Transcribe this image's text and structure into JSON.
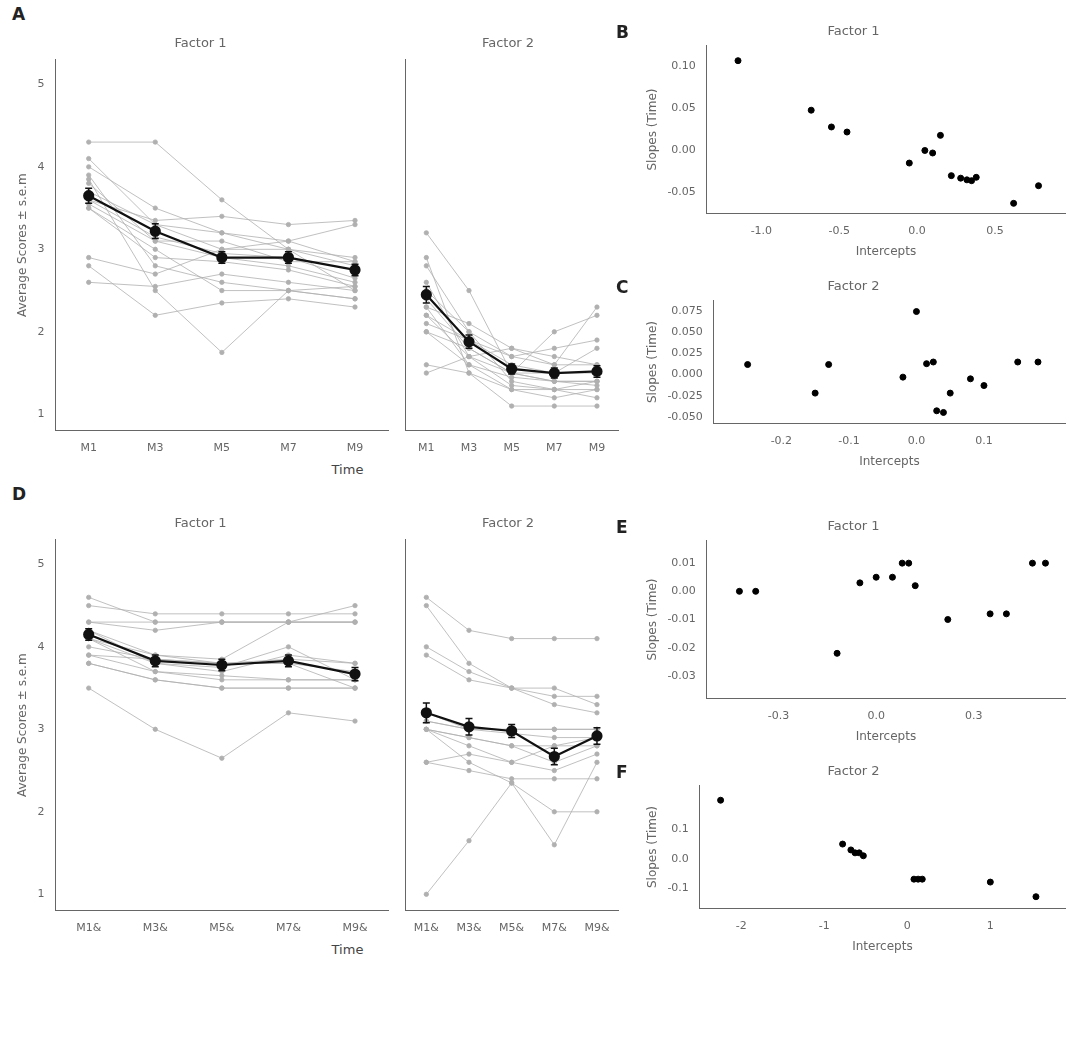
{
  "chart_data": [
    {
      "type": "line",
      "title": "Factor 1",
      "xlabel": "Time",
      "ylabel": "Average Scores ± s.e.m",
      "annotations": [
        "A"
      ],
      "categories": [
        "M1",
        "M3",
        "M5",
        "M7",
        "M9"
      ],
      "ylim": [
        0.8,
        5.3
      ],
      "yticks": [
        1,
        2,
        3,
        4,
        5
      ],
      "grid": false,
      "series": [
        {
          "color": "#b0b0b0",
          "marker": "circle",
          "values": [
            3.55,
            3.1,
            2.9,
            2.8,
            2.6
          ]
        },
        {
          "color": "#b0b0b0",
          "marker": "circle",
          "values": [
            3.5,
            2.9,
            2.85,
            2.75,
            2.55
          ]
        },
        {
          "color": "#b0b0b0",
          "marker": "circle",
          "values": [
            3.6,
            3.15,
            2.95,
            2.9,
            2.65
          ]
        },
        {
          "color": "#b0b0b0",
          "marker": "circle",
          "values": [
            3.7,
            3.3,
            3.0,
            3.0,
            2.8
          ]
        },
        {
          "color": "#b0b0b0",
          "marker": "circle",
          "values": [
            3.8,
            3.1,
            3.1,
            2.85,
            2.85
          ]
        },
        {
          "color": "#b0b0b0",
          "marker": "circle",
          "values": [
            2.9,
            2.7,
            3.0,
            3.1,
            3.3
          ]
        },
        {
          "color": "#b0b0b0",
          "marker": "circle",
          "values": [
            4.0,
            3.5,
            3.2,
            3.0,
            2.9
          ]
        },
        {
          "color": "#b0b0b0",
          "marker": "circle",
          "values": [
            4.1,
            3.3,
            3.2,
            3.1,
            2.85
          ]
        },
        {
          "color": "#b0b0b0",
          "marker": "circle",
          "values": [
            3.6,
            3.35,
            3.4,
            3.3,
            3.35
          ]
        },
        {
          "color": "#b0b0b0",
          "marker": "circle",
          "values": [
            4.3,
            4.3,
            3.6,
            3.0,
            2.5
          ]
        },
        {
          "color": "#b0b0b0",
          "marker": "circle",
          "values": [
            3.5,
            3.0,
            2.5,
            2.5,
            2.4
          ]
        },
        {
          "color": "#b0b0b0",
          "marker": "circle",
          "values": [
            2.8,
            2.2,
            2.35,
            2.4,
            2.3
          ]
        },
        {
          "color": "#b0b0b0",
          "marker": "circle",
          "values": [
            2.6,
            2.55,
            2.7,
            2.6,
            2.5
          ]
        },
        {
          "color": "#b0b0b0",
          "marker": "circle",
          "values": [
            3.9,
            2.8,
            2.6,
            2.5,
            2.4
          ]
        },
        {
          "color": "#b0b0b0",
          "marker": "circle",
          "values": [
            3.85,
            2.5,
            1.75,
            2.5,
            2.55
          ]
        },
        {
          "color": "#111111",
          "marker": "circle",
          "values": [
            3.65,
            3.22,
            2.9,
            2.9,
            2.75
          ],
          "errors": [
            0.09,
            0.09,
            0.07,
            0.07,
            0.07
          ]
        }
      ]
    },
    {
      "type": "line",
      "title": "Factor 2",
      "tick_labels": "x",
      "categories": [
        "M1",
        "M3",
        "M5",
        "M7",
        "M9"
      ],
      "ylim": [
        0.8,
        5.3
      ],
      "yticks": [
        1,
        2,
        3,
        4,
        5
      ],
      "grid": false,
      "series": [
        {
          "color": "#b0b0b0",
          "marker": "circle",
          "values": [
            3.2,
            2.5,
            1.5,
            2.0,
            2.2
          ]
        },
        {
          "color": "#b0b0b0",
          "marker": "circle",
          "values": [
            2.8,
            2.0,
            1.4,
            1.3,
            1.4
          ]
        },
        {
          "color": "#b0b0b0",
          "marker": "circle",
          "values": [
            2.2,
            1.7,
            1.35,
            1.3,
            1.3
          ]
        },
        {
          "color": "#b0b0b0",
          "marker": "circle",
          "values": [
            2.0,
            1.8,
            1.5,
            1.5,
            1.5
          ]
        },
        {
          "color": "#b0b0b0",
          "marker": "circle",
          "values": [
            2.5,
            2.0,
            1.7,
            1.6,
            1.6
          ]
        },
        {
          "color": "#b0b0b0",
          "marker": "circle",
          "values": [
            2.6,
            1.7,
            1.5,
            1.4,
            1.4
          ]
        },
        {
          "color": "#b0b0b0",
          "marker": "circle",
          "values": [
            2.9,
            1.5,
            1.1,
            1.1,
            1.1
          ]
        },
        {
          "color": "#b0b0b0",
          "marker": "circle",
          "values": [
            1.6,
            1.5,
            1.3,
            1.3,
            1.2
          ]
        },
        {
          "color": "#b0b0b0",
          "marker": "circle",
          "values": [
            2.4,
            1.8,
            1.5,
            1.4,
            1.4
          ]
        },
        {
          "color": "#b0b0b0",
          "marker": "circle",
          "values": [
            2.3,
            1.6,
            1.3,
            1.2,
            1.3
          ]
        },
        {
          "color": "#b0b0b0",
          "marker": "circle",
          "values": [
            2.2,
            1.9,
            1.7,
            1.8,
            1.9
          ]
        },
        {
          "color": "#b0b0b0",
          "marker": "circle",
          "values": [
            1.5,
            1.7,
            1.8,
            1.6,
            2.3
          ]
        },
        {
          "color": "#b0b0b0",
          "marker": "circle",
          "values": [
            2.1,
            1.9,
            1.6,
            1.5,
            1.8
          ]
        },
        {
          "color": "#b0b0b0",
          "marker": "circle",
          "values": [
            2.3,
            2.1,
            1.8,
            1.7,
            1.6
          ]
        },
        {
          "color": "#b0b0b0",
          "marker": "circle",
          "values": [
            2.0,
            1.6,
            1.45,
            1.4,
            1.35
          ]
        },
        {
          "color": "#111111",
          "marker": "circle",
          "values": [
            2.45,
            1.88,
            1.55,
            1.5,
            1.52
          ],
          "errors": [
            0.1,
            0.08,
            0.06,
            0.06,
            0.07
          ]
        }
      ]
    },
    {
      "type": "line",
      "title": "Factor 1",
      "xlabel": "Time",
      "ylabel": "Average Scores ± s.e.m",
      "annotations": [
        "D"
      ],
      "categories": [
        "M1&",
        "M3&",
        "M5&",
        "M7&",
        "M9&"
      ],
      "ylim": [
        0.8,
        5.3
      ],
      "yticks": [
        1,
        2,
        3,
        4,
        5
      ],
      "grid": false,
      "series": [
        {
          "color": "#b0b0b0",
          "marker": "circle",
          "values": [
            4.1,
            3.9,
            3.8,
            3.8,
            3.7
          ]
        },
        {
          "color": "#b0b0b0",
          "marker": "circle",
          "values": [
            4.1,
            3.8,
            3.7,
            3.9,
            3.8
          ]
        },
        {
          "color": "#b0b0b0",
          "marker": "circle",
          "values": [
            4.2,
            3.8,
            3.75,
            4.0,
            3.6
          ]
        },
        {
          "color": "#b0b0b0",
          "marker": "circle",
          "values": [
            4.0,
            3.85,
            3.8,
            3.85,
            3.8
          ]
        },
        {
          "color": "#b0b0b0",
          "marker": "circle",
          "values": [
            4.1,
            3.7,
            3.6,
            3.6,
            3.6
          ]
        },
        {
          "color": "#b0b0b0",
          "marker": "circle",
          "values": [
            4.2,
            3.9,
            3.85,
            4.3,
            4.5
          ]
        },
        {
          "color": "#b0b0b0",
          "marker": "circle",
          "values": [
            4.3,
            4.2,
            4.3,
            4.3,
            4.3
          ]
        },
        {
          "color": "#b0b0b0",
          "marker": "circle",
          "values": [
            4.3,
            4.3,
            4.3,
            4.3,
            4.3
          ]
        },
        {
          "color": "#b0b0b0",
          "marker": "circle",
          "values": [
            4.5,
            4.4,
            4.4,
            4.4,
            4.4
          ]
        },
        {
          "color": "#b0b0b0",
          "marker": "circle",
          "values": [
            3.9,
            3.7,
            3.65,
            3.6,
            3.6
          ]
        },
        {
          "color": "#b0b0b0",
          "marker": "circle",
          "values": [
            3.8,
            3.6,
            3.5,
            3.5,
            3.5
          ]
        },
        {
          "color": "#b0b0b0",
          "marker": "circle",
          "values": [
            4.6,
            4.3,
            4.3,
            4.3,
            4.3
          ]
        },
        {
          "color": "#b0b0b0",
          "marker": "circle",
          "values": [
            3.5,
            3.0,
            2.65,
            3.2,
            3.1
          ]
        },
        {
          "color": "#b0b0b0",
          "marker": "circle",
          "values": [
            3.9,
            3.85,
            3.8,
            3.8,
            3.5
          ]
        },
        {
          "color": "#b0b0b0",
          "marker": "circle",
          "values": [
            3.8,
            3.6,
            3.5,
            3.5,
            3.5
          ]
        },
        {
          "color": "#111111",
          "marker": "circle",
          "values": [
            4.15,
            3.83,
            3.78,
            3.83,
            3.67
          ],
          "errors": [
            0.07,
            0.07,
            0.07,
            0.07,
            0.08
          ]
        }
      ]
    },
    {
      "type": "line",
      "title": "Factor 2",
      "tick_labels": "x",
      "categories": [
        "M1&",
        "M3&",
        "M5&",
        "M7&",
        "M9&"
      ],
      "ylim": [
        0.8,
        5.3
      ],
      "yticks": [
        1,
        2,
        3,
        4,
        5
      ],
      "grid": false,
      "series": [
        {
          "color": "#b0b0b0",
          "marker": "circle",
          "values": [
            3.2,
            3.0,
            3.0,
            3.0,
            3.0
          ]
        },
        {
          "color": "#b0b0b0",
          "marker": "circle",
          "values": [
            3.1,
            3.0,
            2.95,
            2.9,
            2.9
          ]
        },
        {
          "color": "#b0b0b0",
          "marker": "circle",
          "values": [
            4.0,
            3.7,
            3.5,
            3.5,
            3.3
          ]
        },
        {
          "color": "#b0b0b0",
          "marker": "circle",
          "values": [
            3.9,
            3.6,
            3.5,
            3.4,
            3.4
          ]
        },
        {
          "color": "#b0b0b0",
          "marker": "circle",
          "values": [
            3.0,
            2.9,
            2.8,
            2.6,
            2.8
          ]
        },
        {
          "color": "#b0b0b0",
          "marker": "circle",
          "values": [
            3.0,
            2.8,
            2.6,
            2.5,
            2.7
          ]
        },
        {
          "color": "#b0b0b0",
          "marker": "circle",
          "values": [
            2.6,
            2.5,
            2.4,
            2.4,
            2.4
          ]
        },
        {
          "color": "#b0b0b0",
          "marker": "circle",
          "values": [
            4.6,
            4.2,
            4.1,
            4.1,
            4.1
          ]
        },
        {
          "color": "#b0b0b0",
          "marker": "circle",
          "values": [
            4.5,
            3.8,
            3.5,
            3.3,
            3.2
          ]
        },
        {
          "color": "#b0b0b0",
          "marker": "circle",
          "values": [
            3.0,
            2.6,
            2.35,
            1.6,
            2.6
          ]
        },
        {
          "color": "#b0b0b0",
          "marker": "circle",
          "values": [
            1.0,
            1.65,
            2.35,
            2.0,
            2.0
          ]
        },
        {
          "color": "#b0b0b0",
          "marker": "circle",
          "values": [
            3.0,
            2.9,
            2.8,
            2.8,
            2.9
          ]
        },
        {
          "color": "#b0b0b0",
          "marker": "circle",
          "values": [
            2.6,
            2.7,
            2.6,
            2.8,
            2.8
          ]
        },
        {
          "color": "#b0b0b0",
          "marker": "circle",
          "values": [
            3.1,
            3.0,
            3.0,
            3.0,
            3.0
          ]
        },
        {
          "color": "#111111",
          "marker": "circle",
          "values": [
            3.2,
            3.03,
            2.98,
            2.67,
            2.92
          ],
          "errors": [
            0.12,
            0.1,
            0.08,
            0.1,
            0.1
          ]
        }
      ]
    },
    {
      "type": "scatter",
      "title": "Factor 1",
      "xlabel": "Intercepts",
      "ylabel": "Slopes (Time)",
      "annotations": [
        "B"
      ],
      "color": "black",
      "marker": "circle",
      "grid": false,
      "xlim": [
        -1.35,
        0.95
      ],
      "ylim": [
        -0.075,
        0.125
      ],
      "xticks": [
        {
          "value": -1.0,
          "label": "-1.0"
        },
        -0.5,
        {
          "value": 0.0,
          "label": "0.0"
        },
        0.5
      ],
      "yticks": [
        -0.05,
        {
          "value": 0.0,
          "label": "0.00"
        },
        0.05,
        {
          "value": 0.1,
          "label": "0.10"
        }
      ],
      "x": [
        -1.15,
        -0.68,
        -0.55,
        -0.45,
        0.05,
        0.1,
        -0.05,
        0.15,
        0.22,
        0.32,
        0.28,
        0.38,
        0.35,
        0.62,
        0.78
      ],
      "values": [
        0.107,
        0.048,
        0.028,
        0.022,
        0.0,
        -0.003,
        -0.015,
        0.018,
        -0.03,
        -0.035,
        -0.033,
        -0.032,
        -0.036,
        -0.063,
        -0.042
      ]
    },
    {
      "type": "scatter",
      "title": "Factor 2",
      "xlabel": "Intercepts",
      "ylabel": "Slopes (Time)",
      "annotations": [
        "C"
      ],
      "color": "black",
      "marker": "circle",
      "grid": false,
      "xlim": [
        -0.3,
        0.22
      ],
      "ylim": [
        -0.058,
        0.088
      ],
      "xticks": [
        -0.2,
        -0.1,
        {
          "value": 0.0,
          "label": "0.0"
        },
        0.1
      ],
      "yticks": [
        {
          "value": -0.05,
          "label": "-0.050"
        },
        -0.025,
        {
          "value": 0.0,
          "label": "0.000"
        },
        0.025,
        {
          "value": 0.05,
          "label": "0.050"
        },
        0.075
      ],
      "x": [
        -0.25,
        -0.15,
        -0.13,
        -0.02,
        0.0,
        0.015,
        0.025,
        0.03,
        0.04,
        0.05,
        0.08,
        0.1,
        0.15,
        0.18
      ],
      "values": [
        0.012,
        -0.022,
        0.012,
        -0.003,
        0.075,
        0.013,
        0.015,
        -0.043,
        -0.045,
        -0.022,
        -0.005,
        -0.013,
        0.015,
        0.015
      ]
    },
    {
      "type": "scatter",
      "title": "Factor 1",
      "xlabel": "Intercepts",
      "ylabel": "Slopes (Time)",
      "annotations": [
        "E"
      ],
      "color": "black",
      "marker": "circle",
      "grid": false,
      "xlim": [
        -0.52,
        0.58
      ],
      "ylim": [
        -0.038,
        0.018
      ],
      "xticks": [
        -0.3,
        {
          "value": 0.0,
          "label": "0.0"
        },
        0.3
      ],
      "yticks": [
        -0.03,
        -0.02,
        -0.01,
        {
          "value": 0.0,
          "label": "0.00"
        },
        0.01
      ],
      "x": [
        -0.42,
        -0.37,
        -0.12,
        -0.05,
        0.0,
        0.05,
        0.08,
        0.1,
        0.12,
        0.22,
        0.35,
        0.4,
        0.48,
        0.52
      ],
      "values": [
        0.0,
        0.0,
        -0.022,
        0.003,
        0.005,
        0.005,
        0.01,
        0.01,
        0.002,
        -0.01,
        -0.008,
        -0.008,
        0.01,
        0.01
      ]
    },
    {
      "type": "scatter",
      "title": "Factor 2",
      "xlabel": "Intercepts",
      "ylabel": "Slopes (Time)",
      "annotations": [
        "F"
      ],
      "color": "black",
      "marker": "circle",
      "grid": false,
      "xlim": [
        -2.5,
        1.9
      ],
      "ylim": [
        -0.17,
        0.25
      ],
      "xticks": [
        -2,
        -1,
        0,
        1
      ],
      "yticks": [
        -0.1,
        {
          "value": 0.0,
          "label": "0.0"
        },
        0.1
      ],
      "x": [
        -2.25,
        -0.78,
        -0.68,
        -0.63,
        -0.58,
        -0.53,
        0.08,
        0.13,
        0.18,
        1.0,
        1.55
      ],
      "values": [
        0.2,
        0.05,
        0.03,
        0.02,
        0.02,
        0.01,
        -0.07,
        -0.07,
        -0.07,
        -0.08,
        -0.13
      ]
    }
  ]
}
